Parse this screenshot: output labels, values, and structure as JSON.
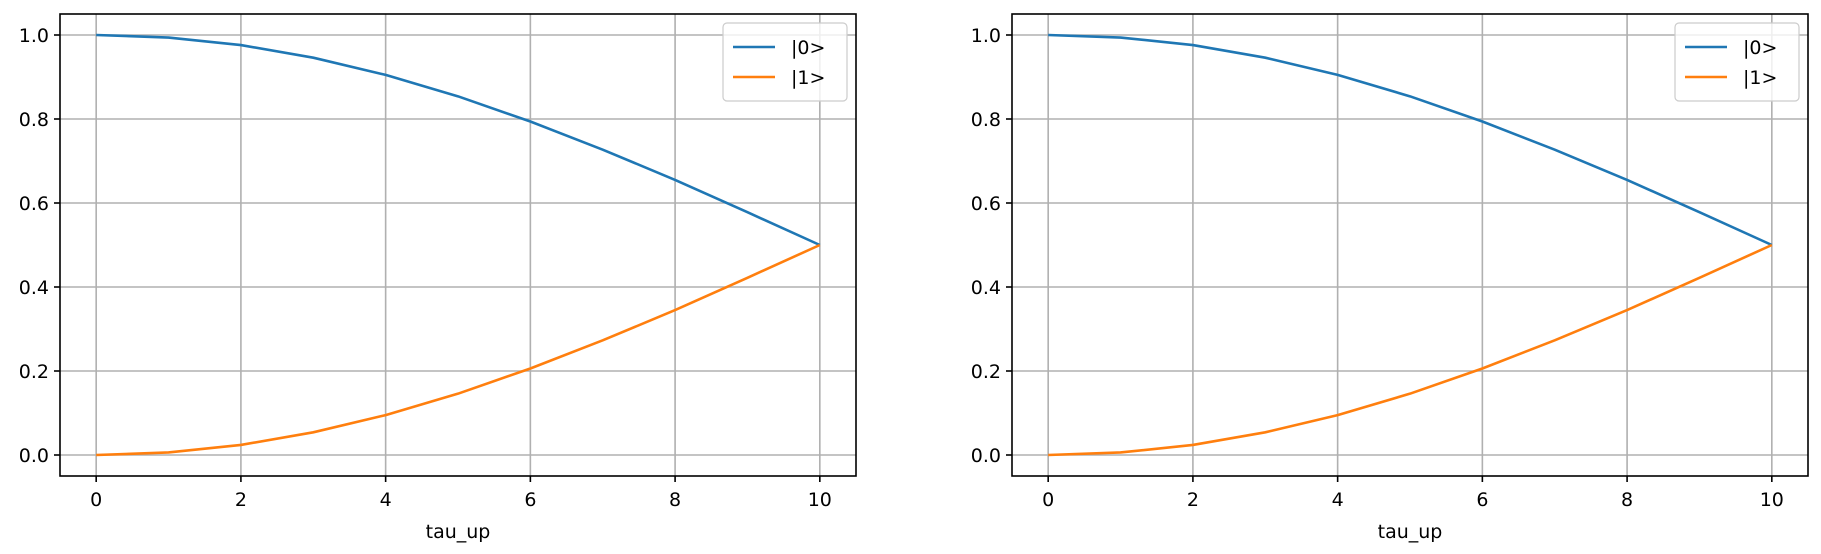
{
  "chart_data": [
    {
      "type": "line",
      "title": "",
      "xlabel": "tau_up",
      "ylabel": "",
      "xlim": [
        -0.5,
        10.5
      ],
      "ylim": [
        -0.05,
        1.05
      ],
      "xticks": [
        0,
        2,
        4,
        6,
        8,
        10
      ],
      "xtick_labels": [
        "0",
        "2",
        "4",
        "6",
        "8",
        "10"
      ],
      "yticks": [
        0.0,
        0.2,
        0.4,
        0.6,
        0.8,
        1.0
      ],
      "ytick_labels": [
        "0.0",
        "0.2",
        "0.4",
        "0.6",
        "0.8",
        "1.0"
      ],
      "grid": true,
      "legend_position": "top-right",
      "x": [
        0,
        1,
        2,
        3,
        4,
        5,
        6,
        7,
        8,
        9,
        10
      ],
      "series": [
        {
          "name": "|0>",
          "color": "#1f77b4",
          "values": [
            1.0,
            0.994,
            0.976,
            0.946,
            0.905,
            0.854,
            0.794,
            0.727,
            0.655,
            0.578,
            0.5
          ]
        },
        {
          "name": "|1>",
          "color": "#ff7f0e",
          "values": [
            0.0,
            0.006,
            0.024,
            0.054,
            0.095,
            0.146,
            0.206,
            0.273,
            0.345,
            0.422,
            0.5
          ]
        }
      ]
    },
    {
      "type": "line",
      "title": "",
      "xlabel": "tau_up",
      "ylabel": "",
      "xlim": [
        -0.5,
        10.5
      ],
      "ylim": [
        -0.05,
        1.05
      ],
      "xticks": [
        0,
        2,
        4,
        6,
        8,
        10
      ],
      "xtick_labels": [
        "0",
        "2",
        "4",
        "6",
        "8",
        "10"
      ],
      "yticks": [
        0.0,
        0.2,
        0.4,
        0.6,
        0.8,
        1.0
      ],
      "ytick_labels": [
        "0.0",
        "0.2",
        "0.4",
        "0.6",
        "0.8",
        "1.0"
      ],
      "grid": true,
      "legend_position": "top-right",
      "x": [
        0,
        1,
        2,
        3,
        4,
        5,
        6,
        7,
        8,
        9,
        10
      ],
      "series": [
        {
          "name": "|0>",
          "color": "#1f77b4",
          "values": [
            1.0,
            0.994,
            0.976,
            0.946,
            0.905,
            0.854,
            0.794,
            0.727,
            0.655,
            0.578,
            0.5
          ]
        },
        {
          "name": "|1>",
          "color": "#ff7f0e",
          "values": [
            0.0,
            0.006,
            0.024,
            0.054,
            0.095,
            0.146,
            0.206,
            0.273,
            0.345,
            0.422,
            0.5
          ]
        }
      ]
    }
  ]
}
